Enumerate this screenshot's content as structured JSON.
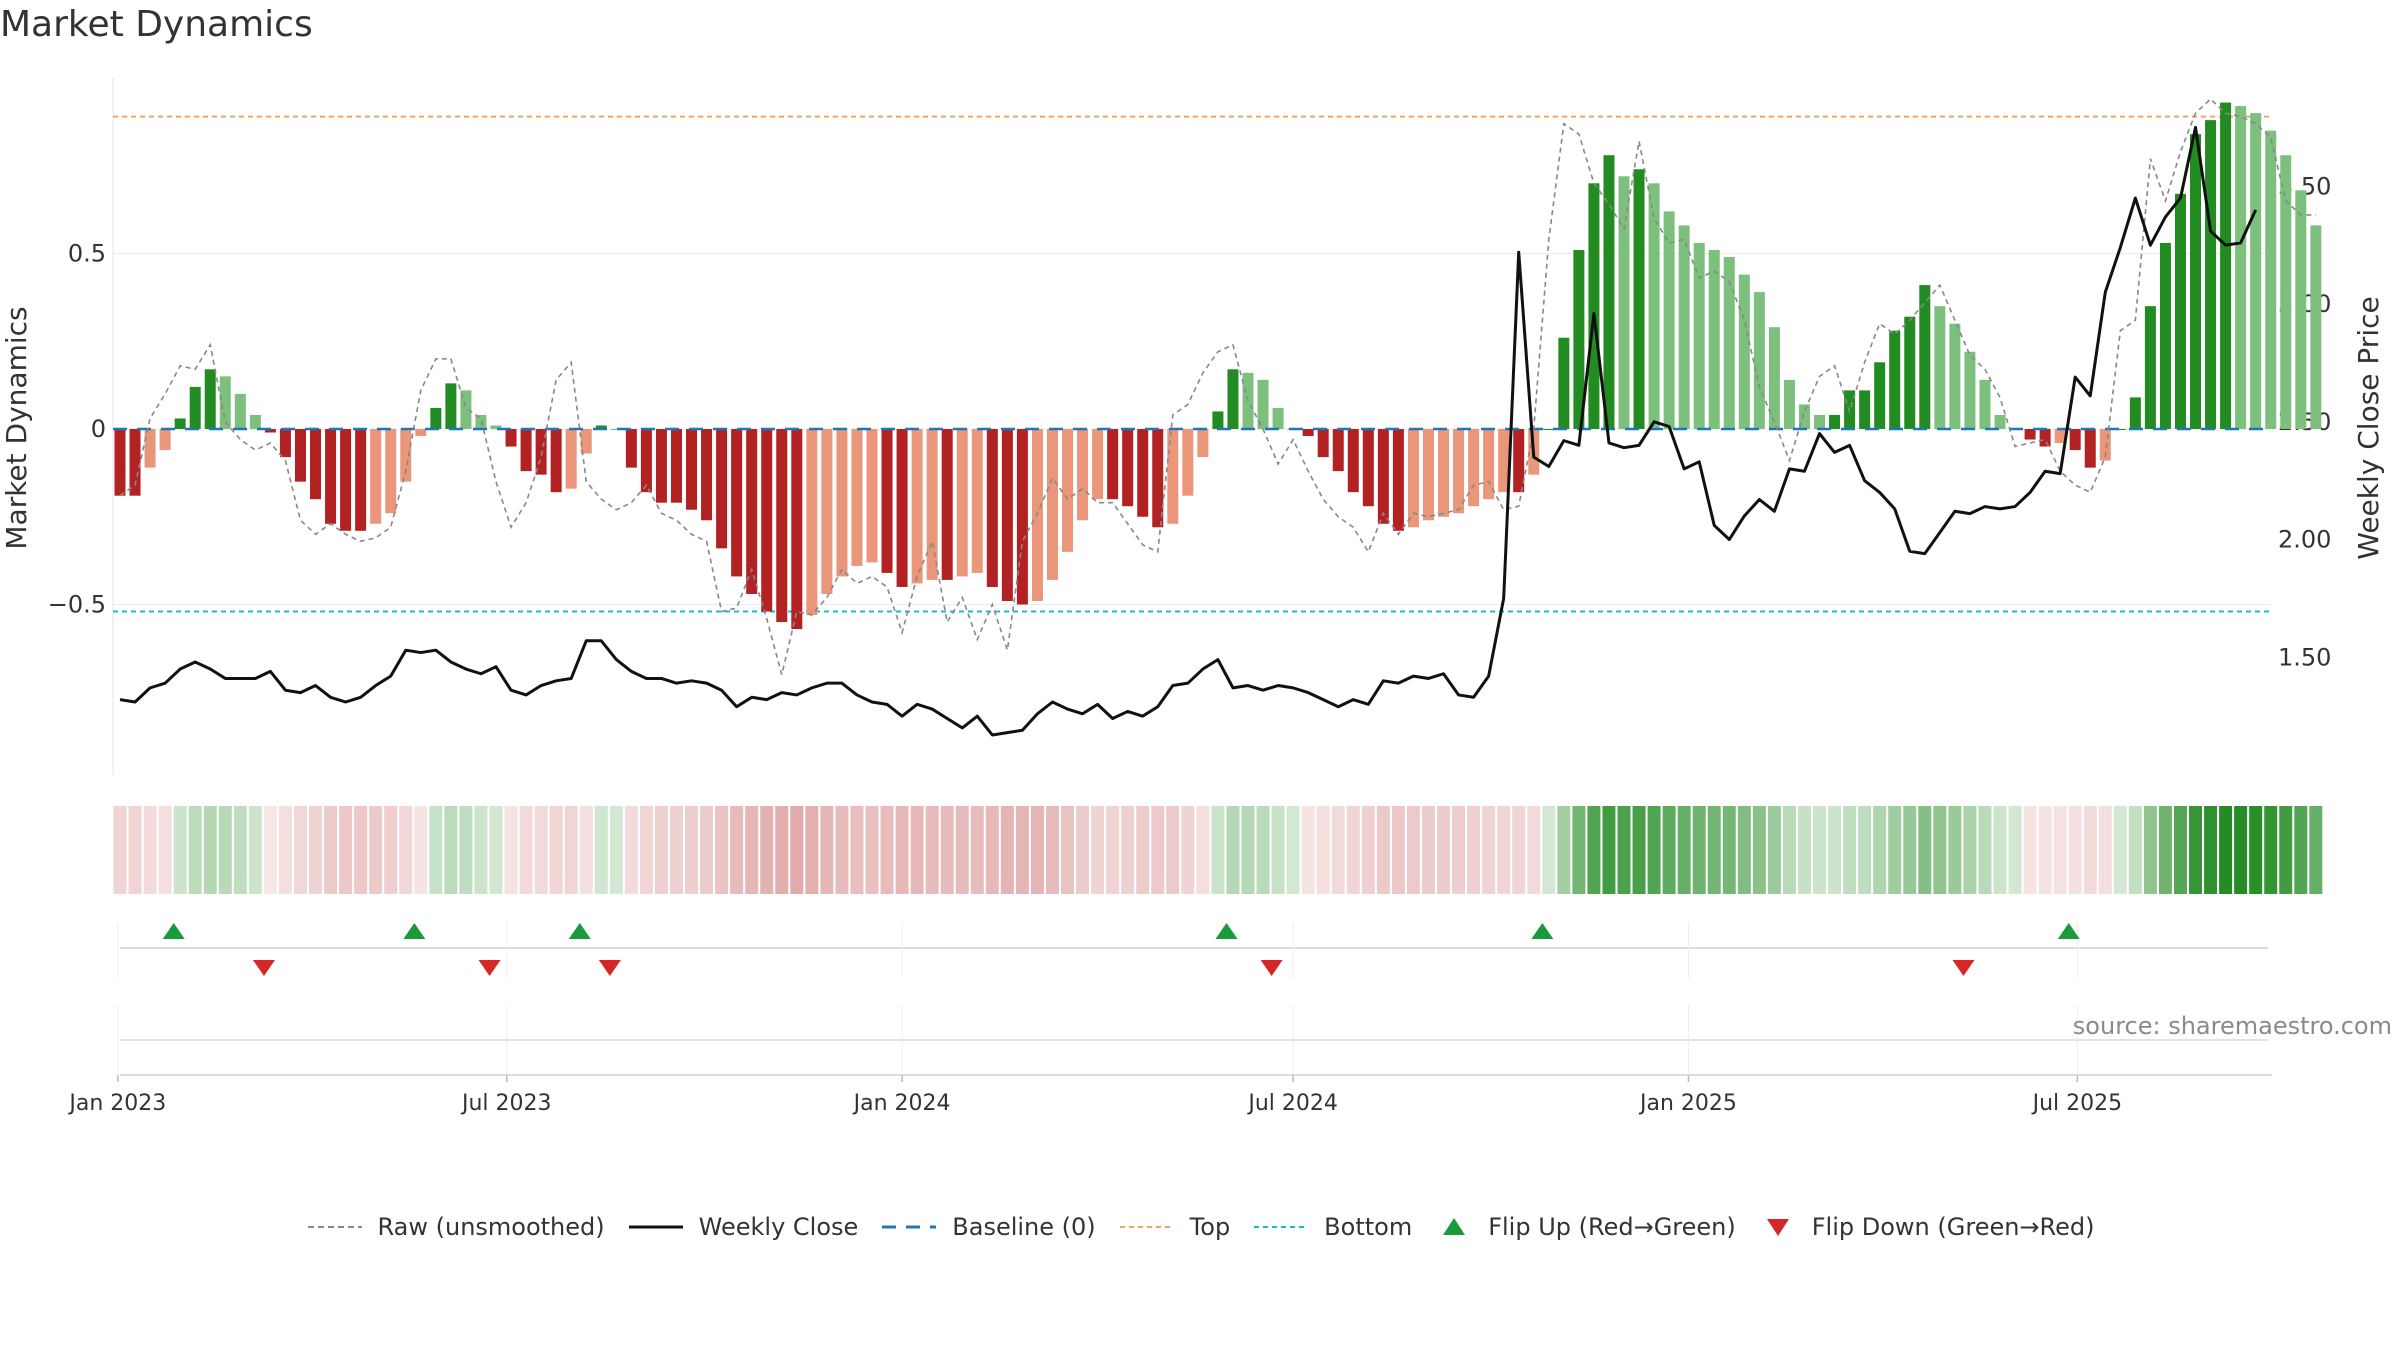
{
  "title": "Market Dynamics",
  "source": "source: sharemaestro.com",
  "legend": {
    "raw": "Raw (unsmoothed)",
    "close": "Weekly Close",
    "baseline": "Baseline (0)",
    "top": "Top",
    "bottom": "Bottom",
    "flip_up": "Flip Up (Red→Green)",
    "flip_down": "Flip Down (Green→Red)"
  },
  "colors": {
    "pos_strong": "#228b22",
    "pos_weak": "#7dc07d",
    "neg_strong": "#b22222",
    "neg_weak": "#e9967a",
    "raw": "#888888",
    "close": "#111111",
    "baseline": "#1f77b4",
    "top": "#f4a460",
    "bottom": "#17becf",
    "flip_up": "#1a9a3a",
    "flip_down": "#d62728"
  },
  "chart_data": {
    "type": "bar",
    "title": "Market Dynamics",
    "ylabel": "Market Dynamics",
    "y2label": "Weekly Close Price",
    "ylim": [
      -0.99,
      0.99
    ],
    "y2lim": [
      1.0,
      3.96
    ],
    "yticks": [
      -0.5,
      0,
      0.5
    ],
    "ytick_labels": [
      "−0.5",
      "0",
      "0.5"
    ],
    "y2ticks": [
      1.5,
      2.0,
      2.5,
      3.0,
      3.5
    ],
    "y2tick_labels": [
      "1.50",
      "2.00",
      "2.50",
      "3.00",
      "3.50"
    ],
    "xticks": [
      "Jan 2023",
      "Jul 2023",
      "Jan 2024",
      "Jul 2024",
      "Jan 2025",
      "Jul 2025"
    ],
    "grid": true,
    "top_level": 0.89,
    "bottom_level": -0.52,
    "dynamics": [
      -0.19,
      -0.19,
      -0.11,
      -0.06,
      0.03,
      0.12,
      0.17,
      0.15,
      0.1,
      0.04,
      -0.01,
      -0.08,
      -0.15,
      -0.2,
      -0.27,
      -0.29,
      -0.29,
      -0.27,
      -0.24,
      -0.15,
      -0.02,
      0.06,
      0.13,
      0.11,
      0.04,
      0.01,
      -0.05,
      -0.12,
      -0.13,
      -0.18,
      -0.17,
      -0.07,
      0.01,
      0.0,
      -0.11,
      -0.18,
      -0.21,
      -0.21,
      -0.23,
      -0.26,
      -0.34,
      -0.42,
      -0.47,
      -0.52,
      -0.55,
      -0.57,
      -0.53,
      -0.47,
      -0.42,
      -0.39,
      -0.38,
      -0.41,
      -0.45,
      -0.44,
      -0.43,
      -0.43,
      -0.42,
      -0.41,
      -0.45,
      -0.49,
      -0.5,
      -0.49,
      -0.43,
      -0.35,
      -0.26,
      -0.2,
      -0.2,
      -0.22,
      -0.25,
      -0.28,
      -0.27,
      -0.19,
      -0.08,
      0.05,
      0.17,
      0.16,
      0.14,
      0.06,
      0.0,
      -0.02,
      -0.08,
      -0.12,
      -0.18,
      -0.22,
      -0.27,
      -0.29,
      -0.28,
      -0.26,
      -0.25,
      -0.24,
      -0.22,
      -0.2,
      -0.18,
      -0.18,
      -0.13,
      0.0,
      0.26,
      0.51,
      0.7,
      0.78,
      0.72,
      0.74,
      0.7,
      0.62,
      0.58,
      0.53,
      0.51,
      0.49,
      0.44,
      0.39,
      0.29,
      0.14,
      0.07,
      0.04,
      0.04,
      0.11,
      0.11,
      0.19,
      0.28,
      0.32,
      0.41,
      0.35,
      0.3,
      0.22,
      0.14,
      0.04,
      0.0,
      -0.03,
      -0.05,
      -0.04,
      -0.06,
      -0.11,
      -0.09,
      0.0,
      0.09,
      0.35,
      0.53,
      0.67,
      0.84,
      0.88,
      0.93,
      0.92,
      0.9,
      0.85,
      0.78,
      0.68,
      0.58
    ],
    "raw": [
      -0.19,
      -0.16,
      0.03,
      0.1,
      0.18,
      0.17,
      0.24,
      0.02,
      -0.03,
      -0.06,
      -0.04,
      -0.09,
      -0.26,
      -0.3,
      -0.27,
      -0.3,
      -0.32,
      -0.31,
      -0.28,
      -0.12,
      0.11,
      0.2,
      0.2,
      0.06,
      0.03,
      -0.15,
      -0.28,
      -0.21,
      -0.08,
      0.14,
      0.19,
      -0.15,
      -0.2,
      -0.23,
      -0.21,
      -0.16,
      -0.24,
      -0.26,
      -0.3,
      -0.32,
      -0.52,
      -0.51,
      -0.4,
      -0.54,
      -0.7,
      -0.52,
      -0.53,
      -0.48,
      -0.4,
      -0.44,
      -0.42,
      -0.45,
      -0.58,
      -0.42,
      -0.32,
      -0.55,
      -0.48,
      -0.6,
      -0.5,
      -0.63,
      -0.32,
      -0.24,
      -0.14,
      -0.2,
      -0.17,
      -0.21,
      -0.21,
      -0.27,
      -0.33,
      -0.35,
      0.04,
      0.07,
      0.16,
      0.22,
      0.24,
      0.08,
      0.0,
      -0.1,
      -0.03,
      -0.12,
      -0.2,
      -0.25,
      -0.28,
      -0.35,
      -0.24,
      -0.3,
      -0.24,
      -0.25,
      -0.24,
      -0.23,
      -0.16,
      -0.15,
      -0.23,
      -0.22,
      0.0,
      0.54,
      0.87,
      0.84,
      0.7,
      0.64,
      0.57,
      0.82,
      0.6,
      0.53,
      0.54,
      0.43,
      0.45,
      0.42,
      0.31,
      0.12,
      0.02,
      -0.09,
      0.05,
      0.15,
      0.18,
      0.05,
      0.19,
      0.3,
      0.27,
      0.31,
      0.36,
      0.41,
      0.31,
      0.21,
      0.17,
      0.09,
      -0.05,
      -0.04,
      -0.03,
      -0.12,
      -0.16,
      -0.18,
      -0.08,
      0.28,
      0.31,
      0.77,
      0.65,
      0.79,
      0.9,
      0.94,
      0.9,
      0.89,
      0.87,
      0.83,
      0.65,
      0.61,
      0.61
    ],
    "close": [
      1.32,
      1.31,
      1.37,
      1.39,
      1.45,
      1.48,
      1.45,
      1.41,
      1.41,
      1.41,
      1.44,
      1.36,
      1.35,
      1.38,
      1.33,
      1.31,
      1.33,
      1.38,
      1.42,
      1.53,
      1.52,
      1.53,
      1.48,
      1.45,
      1.43,
      1.46,
      1.36,
      1.34,
      1.38,
      1.4,
      1.41,
      1.57,
      1.57,
      1.49,
      1.44,
      1.41,
      1.41,
      1.39,
      1.4,
      1.39,
      1.36,
      1.29,
      1.33,
      1.32,
      1.35,
      1.34,
      1.37,
      1.39,
      1.39,
      1.34,
      1.31,
      1.3,
      1.25,
      1.3,
      1.28,
      1.24,
      1.2,
      1.25,
      1.17,
      1.18,
      1.19,
      1.26,
      1.31,
      1.28,
      1.26,
      1.3,
      1.24,
      1.27,
      1.25,
      1.29,
      1.38,
      1.39,
      1.45,
      1.49,
      1.37,
      1.38,
      1.36,
      1.38,
      1.37,
      1.35,
      1.32,
      1.29,
      1.32,
      1.3,
      1.4,
      1.39,
      1.42,
      1.41,
      1.43,
      1.34,
      1.33,
      1.42,
      1.75,
      3.22,
      2.35,
      2.31,
      2.42,
      2.4,
      2.96,
      2.41,
      2.39,
      2.4,
      2.5,
      2.48,
      2.3,
      2.33,
      2.06,
      2.0,
      2.1,
      2.17,
      2.12,
      2.3,
      2.29,
      2.45,
      2.37,
      2.4,
      2.25,
      2.2,
      2.13,
      1.95,
      1.94,
      2.03,
      2.12,
      2.11,
      2.14,
      2.13,
      2.14,
      2.2,
      2.29,
      2.28,
      2.69,
      2.61,
      3.05,
      3.24,
      3.45,
      3.25,
      3.37,
      3.45,
      3.75,
      3.31,
      3.25,
      3.26,
      3.4
    ],
    "flip_up": [
      "2023-01-27",
      "2023-05-19",
      "2023-08-04",
      "2024-05-31",
      "2024-10-25",
      "2025-06-27"
    ],
    "flip_down": [
      "2023-03-10",
      "2023-06-23",
      "2023-08-18",
      "2024-06-21",
      "2025-05-09"
    ]
  }
}
